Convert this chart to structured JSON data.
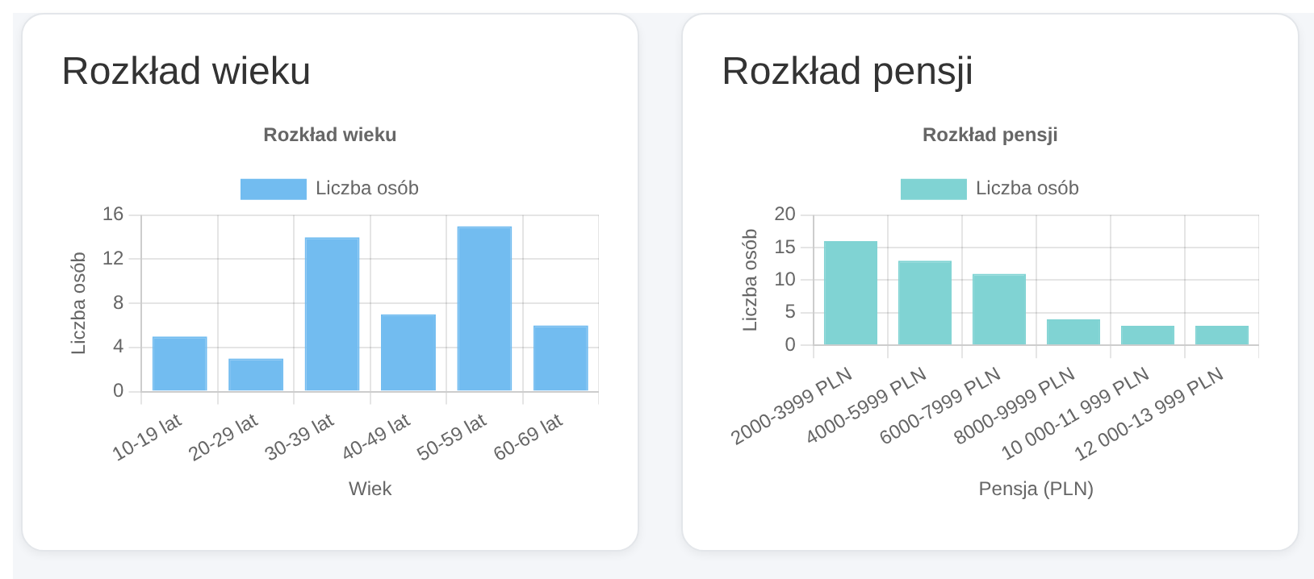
{
  "chart_data": [
    {
      "type": "bar",
      "title": "Rozkład wieku",
      "subtitle": "Rozkład wieku",
      "xlabel": "Wiek",
      "ylabel": "Liczba osób",
      "categories": [
        "10-19 lat",
        "20-29 lat",
        "30-39 lat",
        "40-49 lat",
        "50-59 lat",
        "60-69 lat"
      ],
      "series": [
        {
          "name": "Liczba osób",
          "color": "#72bcf0",
          "values": [
            5,
            3,
            14,
            7,
            15,
            6
          ]
        }
      ],
      "ylim": [
        0,
        16
      ],
      "yticks": [
        0,
        4,
        8,
        12,
        16
      ],
      "grid": true,
      "legend": "top"
    },
    {
      "type": "bar",
      "title": "Rozkład pensji",
      "subtitle": "Rozkład pensji",
      "xlabel": "Pensja (PLN)",
      "ylabel": "Liczba osób",
      "categories": [
        "2000-3999 PLN",
        "4000-5999 PLN",
        "6000-7999 PLN",
        "8000-9999 PLN",
        "10 000-11 999 PLN",
        "12 000-13 999 PLN"
      ],
      "series": [
        {
          "name": "Liczba osób",
          "color": "#80d3d3",
          "values": [
            16,
            13,
            11,
            4,
            3,
            3
          ]
        }
      ],
      "ylim": [
        0,
        20
      ],
      "yticks": [
        0,
        5,
        10,
        15,
        20
      ],
      "grid": true,
      "legend": "top"
    }
  ]
}
